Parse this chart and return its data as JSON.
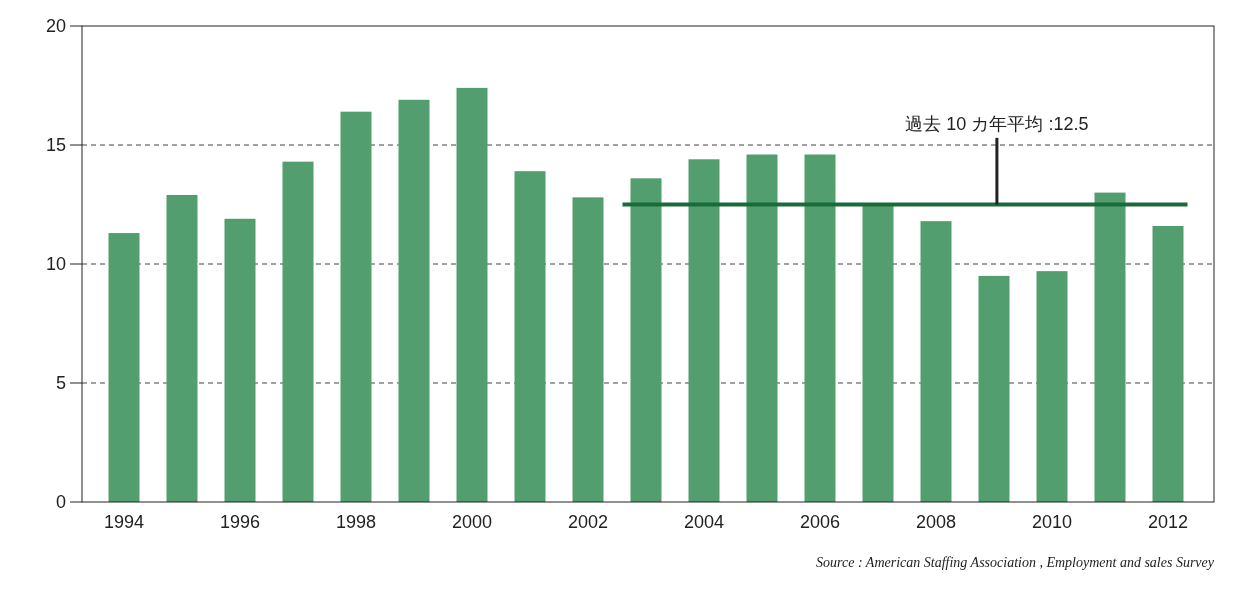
{
  "chart_data": {
    "type": "bar",
    "categories": [
      "1994",
      null,
      "1996",
      null,
      "1998",
      null,
      "2000",
      null,
      "2002",
      null,
      "2004",
      null,
      "2006",
      null,
      "2008",
      null,
      "2010",
      null,
      "2012"
    ],
    "values": [
      11.3,
      12.9,
      11.9,
      14.3,
      16.4,
      16.9,
      17.4,
      13.9,
      12.8,
      13.6,
      14.4,
      14.6,
      14.6,
      12.5,
      11.8,
      9.5,
      9.7,
      13.0,
      11.6
    ],
    "color": "#529e6f",
    "ylim": [
      0,
      20
    ],
    "yticks": [
      0,
      5,
      10,
      15,
      20
    ],
    "grid": "y",
    "ref_lines": [
      {
        "axis": "y",
        "value": 12.5,
        "label": "過去 10 カ年平均 :12.5",
        "color": "#1a6b3a"
      }
    ],
    "annotations": [
      "Source : American Staffing Association , Employment and sales Survey"
    ]
  }
}
